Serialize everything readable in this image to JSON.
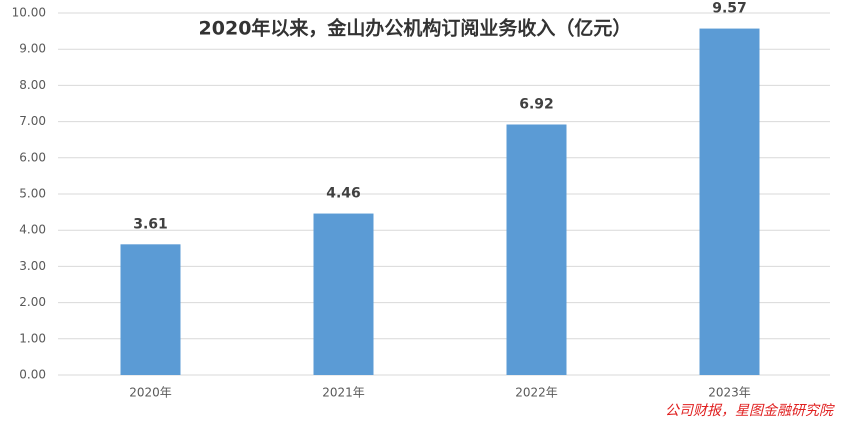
{
  "chart_data": {
    "type": "bar",
    "title": "2020年以来，金山办公机构订阅业务收入（亿元）",
    "categories": [
      "2020年",
      "2021年",
      "2022年",
      "2023年"
    ],
    "values": [
      3.61,
      4.46,
      6.92,
      9.57
    ],
    "color": "#5b9bd5",
    "ylim": [
      0,
      10
    ],
    "yticks": [
      {
        "value": 0,
        "label": "0.00"
      },
      {
        "value": 1,
        "label": "1.00"
      },
      {
        "value": 2,
        "label": "2.00"
      },
      {
        "value": 3,
        "label": "3.00"
      },
      {
        "value": 4,
        "label": "4.00"
      },
      {
        "value": 5,
        "label": "5.00"
      },
      {
        "value": 6,
        "label": "6.00"
      },
      {
        "value": 7,
        "label": "7.00"
      },
      {
        "value": 8,
        "label": "8.00"
      },
      {
        "value": 9,
        "label": "9.00"
      },
      {
        "value": 10,
        "label": "10.00"
      }
    ],
    "grid": true,
    "source": "公司财报，星图金融研究院"
  }
}
